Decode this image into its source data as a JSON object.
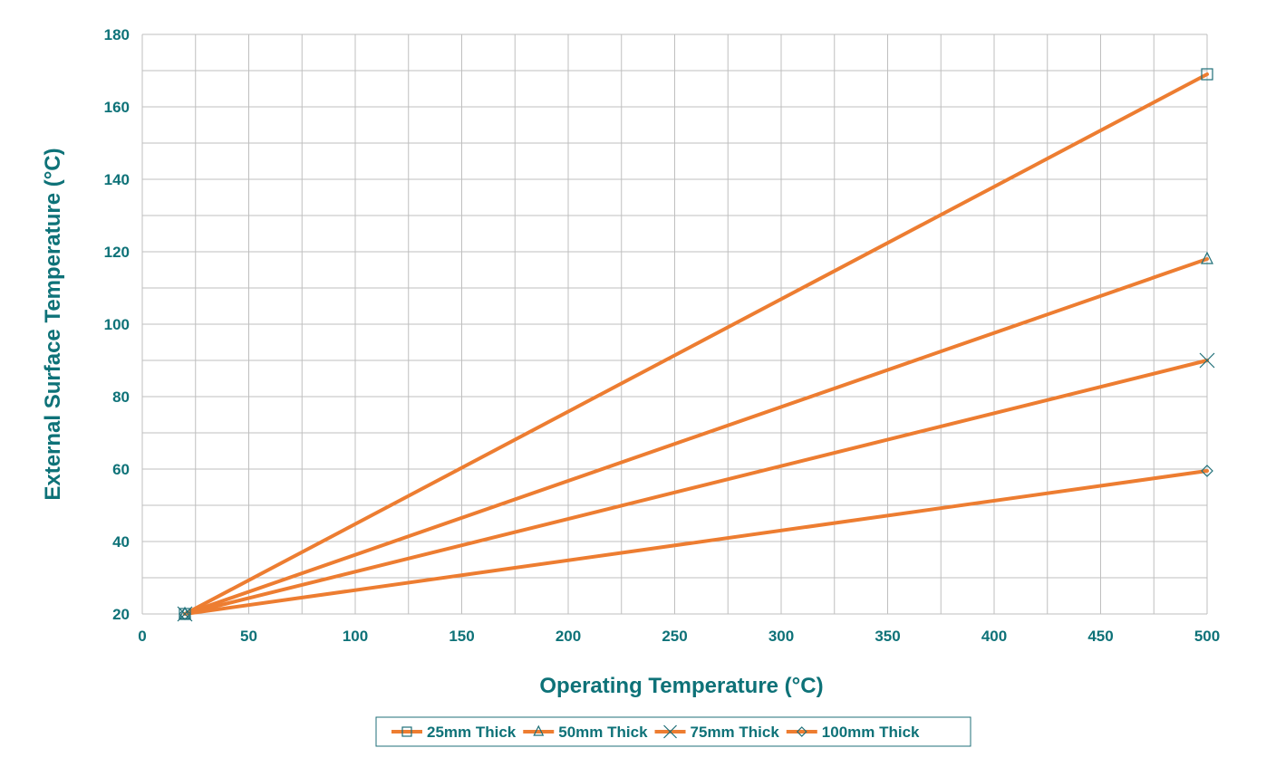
{
  "chart_data": {
    "type": "line",
    "xlabel": "Operating Temperature (°C)",
    "ylabel": "External Surface Temperature (°C)",
    "xlim": [
      0,
      500
    ],
    "ylim": [
      20,
      180
    ],
    "x_minor_step": 25,
    "y_minor_step": 10,
    "x_ticks": [
      0,
      50,
      100,
      150,
      200,
      250,
      300,
      350,
      400,
      450,
      500
    ],
    "y_ticks": [
      20,
      40,
      60,
      80,
      100,
      120,
      140,
      160,
      180
    ],
    "grid": true,
    "legend_position": "bottom-center",
    "series": [
      {
        "name": "25mm Thick",
        "marker": "square",
        "x": [
          20,
          500
        ],
        "y": [
          20,
          169
        ]
      },
      {
        "name": "50mm Thick",
        "marker": "triangle",
        "x": [
          20,
          500
        ],
        "y": [
          20,
          118
        ]
      },
      {
        "name": "75mm Thick",
        "marker": "x",
        "x": [
          20,
          500
        ],
        "y": [
          20,
          90
        ]
      },
      {
        "name": "100mm Thick",
        "marker": "diamond",
        "x": [
          20,
          500
        ],
        "y": [
          20,
          59.5
        ]
      }
    ],
    "colors": {
      "line": "#ED7D31",
      "text": "#0E7278",
      "grid": "#BFBFBF",
      "marker": "#1F6F78",
      "legend_border": "#1F6F78"
    }
  }
}
